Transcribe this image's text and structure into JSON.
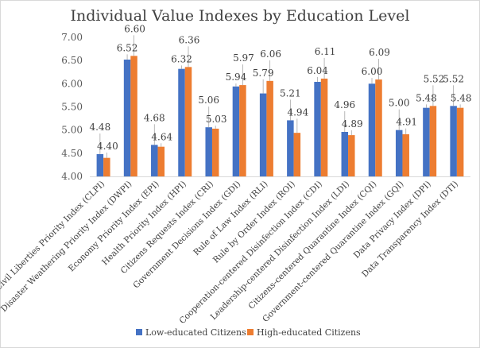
{
  "chart_data": {
    "type": "bar",
    "title": "Individual  Value Indexes by Education Level",
    "xlabel": "",
    "ylabel": "",
    "ylim": [
      4.0,
      7.0
    ],
    "yticks": [
      "4.00",
      "4.50",
      "5.00",
      "5.50",
      "6.00",
      "6.50",
      "7.00"
    ],
    "grid": false,
    "legend_position": "bottom",
    "categories": [
      "Civil Liberties Priority Index (CLPI)",
      "Disaster Weathering Priority Index (DWPI)",
      "Economy Priority Index (EPI)",
      "Health Priority Index (HPI)",
      "Citizens Requests Index (CRI)",
      "Government Decisions Index (GDI)",
      "Rule of Law Index (RLI)",
      "Rule by Order Index (ROI)",
      "Cooperation-centered Disinfection Index (CDI)",
      "Leadership-centered Disinfection Index (LDI)",
      "Citizens-centered Quarantine Index (CQI)",
      "Government-centered Quarantine Index (GQI)",
      "Data Privacy Index (DPI)",
      "Data Transparency Index (DTI)"
    ],
    "series": [
      {
        "name": "Low-educated Citizens",
        "color": "#4472C4",
        "values": [
          4.48,
          6.52,
          4.68,
          6.32,
          5.06,
          5.94,
          5.79,
          5.21,
          6.04,
          4.96,
          6.0,
          5.0,
          5.48,
          5.52
        ],
        "labels": [
          "4.48",
          "6.52",
          "4.68",
          "6.32",
          "5.06",
          "5.94",
          "5.79",
          "5.21",
          "6.04",
          "4.96",
          "6.00",
          "5.00",
          "5.48",
          "5.52"
        ]
      },
      {
        "name": "High-educated Citizens",
        "color": "#ED7D31",
        "values": [
          4.4,
          6.6,
          4.64,
          6.36,
          5.03,
          5.97,
          6.06,
          4.94,
          6.11,
          4.89,
          6.09,
          4.91,
          5.52,
          5.48
        ],
        "labels": [
          "4.40",
          "6.60",
          "4.64",
          "6.36",
          "5.03",
          "5.97",
          "6.06",
          "4.94",
          "6.11",
          "4.89",
          "6.09",
          "4.91",
          "5.52",
          "5.48"
        ]
      }
    ]
  }
}
